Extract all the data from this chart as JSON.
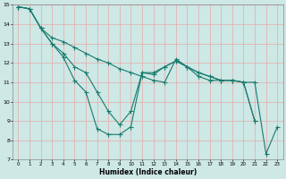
{
  "xlabel": "Humidex (Indice chaleur)",
  "xlim": [
    -0.5,
    23.5
  ],
  "ylim": [
    7,
    15
  ],
  "xticks": [
    0,
    1,
    2,
    3,
    4,
    5,
    6,
    7,
    8,
    9,
    10,
    11,
    12,
    13,
    14,
    15,
    16,
    17,
    18,
    19,
    20,
    21,
    22,
    23
  ],
  "yticks": [
    7,
    8,
    9,
    10,
    11,
    12,
    13,
    14,
    15
  ],
  "background_color": "#cde8e5",
  "grid_color": "#e8aaaa",
  "line_color": "#1a7a6e",
  "line1_x": [
    0,
    1,
    2,
    3,
    4,
    5,
    6,
    7,
    8,
    9,
    10,
    11,
    12,
    13,
    14,
    15,
    16,
    17,
    18,
    19,
    20,
    21,
    22,
    23
  ],
  "line1_y": [
    14.9,
    14.8,
    13.8,
    13.0,
    12.3,
    11.1,
    10.5,
    8.6,
    8.3,
    8.3,
    8.7,
    11.5,
    11.4,
    11.8,
    12.1,
    11.8,
    11.3,
    11.1,
    11.1,
    11.1,
    11.0,
    11.0,
    7.3,
    8.7
  ],
  "line2_x": [
    0,
    1,
    2,
    3,
    4,
    5,
    6,
    7,
    8,
    9,
    10,
    11,
    12,
    13,
    14,
    15,
    16,
    17,
    18,
    19,
    20,
    21
  ],
  "line2_y": [
    14.9,
    14.8,
    13.8,
    13.0,
    12.5,
    11.8,
    11.5,
    10.5,
    9.5,
    8.8,
    9.5,
    11.5,
    11.5,
    11.8,
    12.1,
    11.8,
    11.5,
    11.3,
    11.1,
    11.1,
    11.0,
    9.0
  ],
  "line3_x": [
    0,
    1,
    2,
    3,
    4,
    5,
    6,
    7,
    8,
    9,
    10,
    11,
    12,
    13,
    14,
    15,
    16,
    17,
    18,
    19,
    20,
    21
  ],
  "line3_y": [
    14.9,
    14.8,
    13.8,
    13.3,
    13.1,
    12.8,
    12.5,
    12.2,
    12.0,
    11.7,
    11.5,
    11.3,
    11.1,
    11.0,
    12.2,
    11.8,
    11.5,
    11.3,
    11.1,
    11.1,
    11.0,
    9.0
  ],
  "figsize": [
    3.2,
    2.0
  ],
  "dpi": 100
}
